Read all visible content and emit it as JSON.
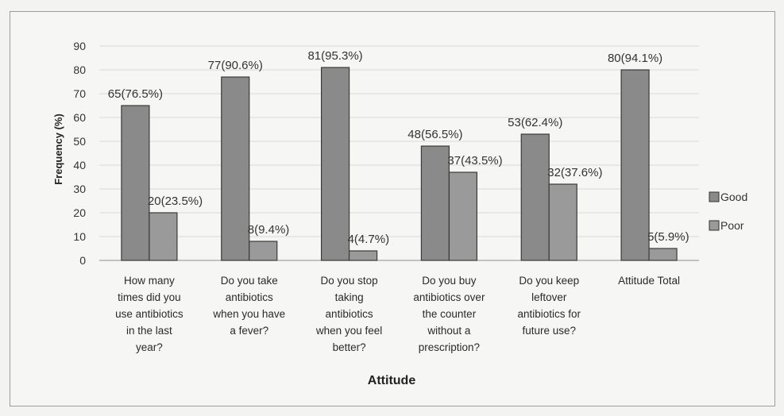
{
  "chart_data": {
    "type": "bar",
    "title": "",
    "xlabel": "Attitude",
    "ylabel": "Frequency (%)",
    "ylim": [
      0,
      90
    ],
    "yticks": [
      0,
      10,
      20,
      30,
      40,
      50,
      60,
      70,
      80,
      90
    ],
    "categories": [
      [
        "How many",
        "times did you",
        "use antibiotics",
        "in the last",
        "year?"
      ],
      [
        "Do you take",
        "antibiotics",
        "when you have",
        "a fever?"
      ],
      [
        "Do you stop",
        "taking",
        "antibiotics",
        "when you feel",
        "better?"
      ],
      [
        "Do you buy",
        "antibiotics over",
        "the counter",
        "without a",
        "prescription?"
      ],
      [
        "Do you keep",
        "leftover",
        "antibiotics for",
        "future use?"
      ],
      [
        "Attitude Total"
      ]
    ],
    "series": [
      {
        "name": "Good",
        "color": "#8a8a8a",
        "values": [
          65,
          77,
          81,
          48,
          53,
          80
        ],
        "labels": [
          "65(76.5%)",
          "77(90.6%)",
          "81(95.3%)",
          "48(56.5%)",
          "53(62.4%)",
          "80(94.1%)"
        ]
      },
      {
        "name": "Poor",
        "color": "#9a9a9a",
        "values": [
          20,
          8,
          4,
          37,
          32,
          5
        ],
        "labels": [
          "20(23.5%)",
          "8(9.4%)",
          "4(4.7%)",
          "37(43.5%)",
          "32(37.6%)",
          "5(5.9%)"
        ]
      }
    ],
    "legend": "right",
    "grid": true
  }
}
